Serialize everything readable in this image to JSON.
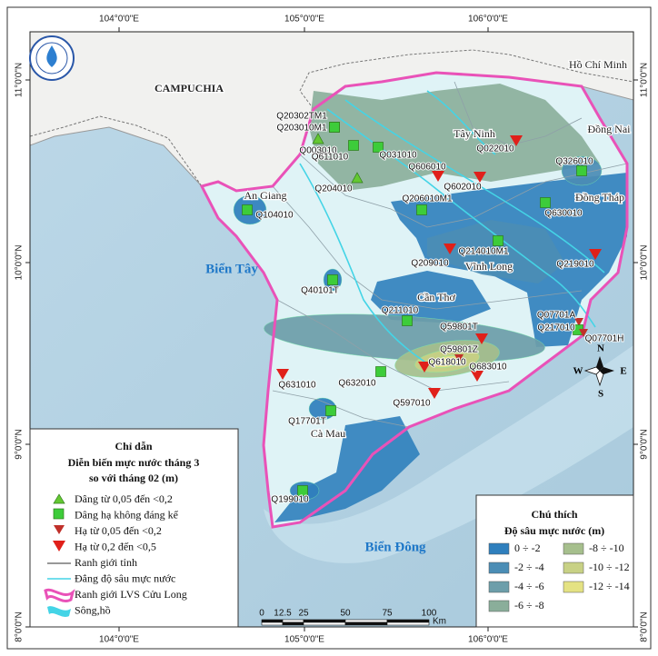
{
  "map": {
    "lon_labels": [
      "104°0'0\"E",
      "105°0'0\"E",
      "106°0'0\"E"
    ],
    "lat_labels": [
      "11°0'0\"N",
      "10°0'0\"N",
      "9°0'0\"N",
      "8°0'0\"N"
    ],
    "places": [
      {
        "label": "CAMPUCHIA",
        "kind": "country"
      },
      {
        "label": "Hồ Chí Minh",
        "kind": "province"
      },
      {
        "label": "Đồng Nai",
        "kind": "province"
      },
      {
        "label": "Tây Ninh",
        "kind": "province"
      },
      {
        "label": "An Giang",
        "kind": "province"
      },
      {
        "label": "Đồng Tháp",
        "kind": "province"
      },
      {
        "label": "Vĩnh Long",
        "kind": "province"
      },
      {
        "label": "Cần Thơ",
        "kind": "province"
      },
      {
        "label": "Cà Mau",
        "kind": "province"
      },
      {
        "label": "Biển Tây",
        "kind": "sea"
      },
      {
        "label": "Biển Đông",
        "kind": "sea"
      }
    ],
    "stations": [
      {
        "label": "Q20302TM1",
        "symbol": "stable"
      },
      {
        "label": "Q203010M1",
        "symbol": "stable"
      },
      {
        "label": "Q003010",
        "symbol": "rise"
      },
      {
        "label": "Q611010",
        "symbol": "stable"
      },
      {
        "label": "Q031010",
        "symbol": "stable"
      },
      {
        "label": "Q204010",
        "symbol": "rise"
      },
      {
        "label": "Q606010",
        "symbol": "fall-large"
      },
      {
        "label": "Q022010",
        "symbol": "fall-large"
      },
      {
        "label": "Q602010",
        "symbol": "fall-large"
      },
      {
        "label": "Q326010",
        "symbol": "stable"
      },
      {
        "label": "Q206010M1",
        "symbol": "stable"
      },
      {
        "label": "Q630010",
        "symbol": "stable"
      },
      {
        "label": "Q104010",
        "symbol": "stable"
      },
      {
        "label": "Q214010M1",
        "symbol": "stable"
      },
      {
        "label": "Q209010",
        "symbol": "fall-large"
      },
      {
        "label": "Q219010",
        "symbol": "fall-large"
      },
      {
        "label": "Q40101T",
        "symbol": "stable"
      },
      {
        "label": "Q211010",
        "symbol": "stable"
      },
      {
        "label": "Q59801T",
        "symbol": "fall-large"
      },
      {
        "label": "Q07701A",
        "symbol": "fall-small"
      },
      {
        "label": "Q217010",
        "symbol": "stable"
      },
      {
        "label": "Q07701H",
        "symbol": "fall-small"
      },
      {
        "label": "Q59801Z",
        "symbol": "fall-small"
      },
      {
        "label": "Q618010",
        "symbol": "fall-large"
      },
      {
        "label": "Q683010",
        "symbol": "fall-large"
      },
      {
        "label": "Q631010",
        "symbol": "fall-large"
      },
      {
        "label": "Q632010",
        "symbol": "stable"
      },
      {
        "label": "Q597010",
        "symbol": "fall-large"
      },
      {
        "label": "Q17701T",
        "symbol": "stable"
      },
      {
        "label": "Q199010",
        "symbol": "stable"
      }
    ],
    "legend": {
      "title": "Chỉ dẫn",
      "subtitle_1": "Diễn biến mực nước tháng 3",
      "subtitle_2": "so với tháng 02 (m)",
      "items": [
        "Dâng từ 0,05 đến <0,2",
        "Dâng hạ không đáng kể",
        "Hạ từ 0,05 đến <0,2",
        "Hạ từ 0,2 đến <0,5",
        "Ranh giới tỉnh",
        "Đẳng độ sâu mực nước",
        "Ranh giới LVS Cửu Long",
        "Sông,hồ"
      ]
    },
    "depth_legend": {
      "title": "Chú thích",
      "subtitle": "Độ sâu mực nước (m)",
      "classes": [
        {
          "label": "0 ÷ -2",
          "color": "#2f7fbd"
        },
        {
          "label": "-2 ÷ -4",
          "color": "#4b8db5"
        },
        {
          "label": "-4 ÷ -6",
          "color": "#6d9eaa"
        },
        {
          "label": "-6 ÷ -8",
          "color": "#8aae9a"
        },
        {
          "label": "-8 ÷ -10",
          "color": "#a6bf8d"
        },
        {
          "label": "-10 ÷ -12",
          "color": "#c8d185"
        },
        {
          "label": "-12 ÷ -14",
          "color": "#e4e283"
        }
      ]
    },
    "scale_bar": {
      "ticks": [
        0,
        12.5,
        25,
        50,
        75,
        100
      ],
      "unit": "Km"
    },
    "compass": {
      "north": "N",
      "south": "S",
      "east": "E",
      "west": "W"
    }
  }
}
